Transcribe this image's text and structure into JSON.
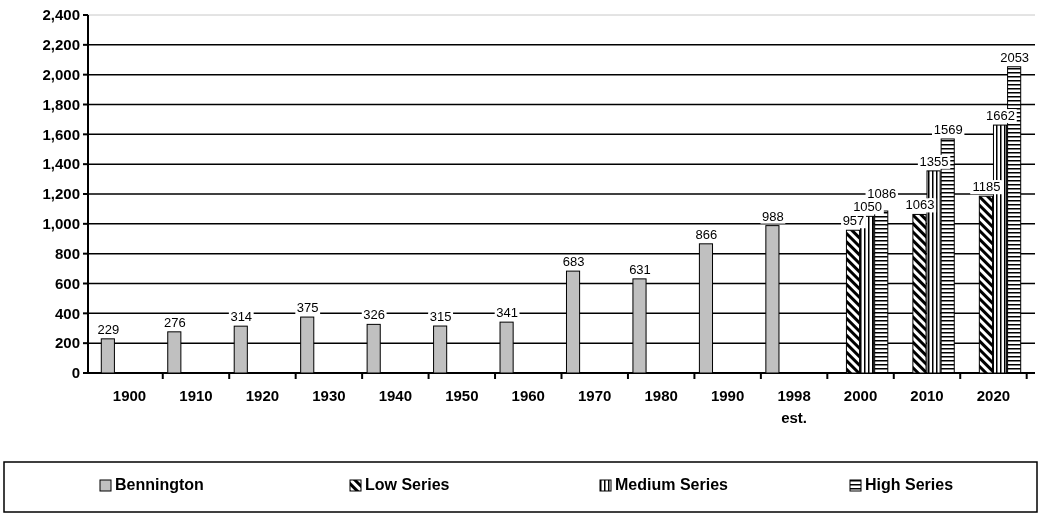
{
  "chart_data": {
    "type": "bar",
    "categories": [
      "1900",
      "1910",
      "1920",
      "1930",
      "1940",
      "1950",
      "1960",
      "1970",
      "1980",
      "1990",
      "1998\nest.",
      "2000",
      "2010",
      "2020"
    ],
    "series": [
      {
        "name": "Bennington",
        "color": "#c0c0c0",
        "values": [
          229,
          276,
          314,
          375,
          326,
          315,
          341,
          683,
          631,
          866,
          988,
          null,
          null,
          null
        ]
      },
      {
        "name": "Low Series",
        "color": "#000000",
        "values": [
          null,
          null,
          null,
          null,
          null,
          null,
          null,
          null,
          null,
          null,
          null,
          957,
          1063,
          1185
        ]
      },
      {
        "name": "Medium Series",
        "color": "#000000",
        "values": [
          null,
          null,
          null,
          null,
          null,
          null,
          null,
          null,
          null,
          null,
          null,
          1050,
          1355,
          1662
        ]
      },
      {
        "name": "High Series",
        "color": "#000000",
        "values": [
          null,
          null,
          null,
          null,
          null,
          null,
          null,
          null,
          null,
          null,
          null,
          1086,
          1569,
          2053
        ]
      }
    ],
    "ylim": [
      0,
      2400
    ],
    "yticks": [
      0,
      {
        "value": 200,
        "label": "200"
      },
      {
        "value": 400,
        "label": "400"
      },
      {
        "value": 600,
        "label": "600"
      },
      {
        "value": 800,
        "label": "800"
      },
      {
        "value": 1000,
        "label": "1,000"
      },
      {
        "value": 1200,
        "label": "1,200"
      },
      {
        "value": 1400,
        "label": "1,400"
      },
      {
        "value": 1600,
        "label": "1,600"
      },
      {
        "value": 1800,
        "label": "1,800"
      },
      {
        "value": 2000,
        "label": "2,000"
      },
      {
        "value": 2200,
        "label": "2,200"
      },
      {
        "value": 2400,
        "label": "2,400"
      }
    ],
    "grid": "y",
    "legend": "bottom",
    "data_labels": true
  }
}
